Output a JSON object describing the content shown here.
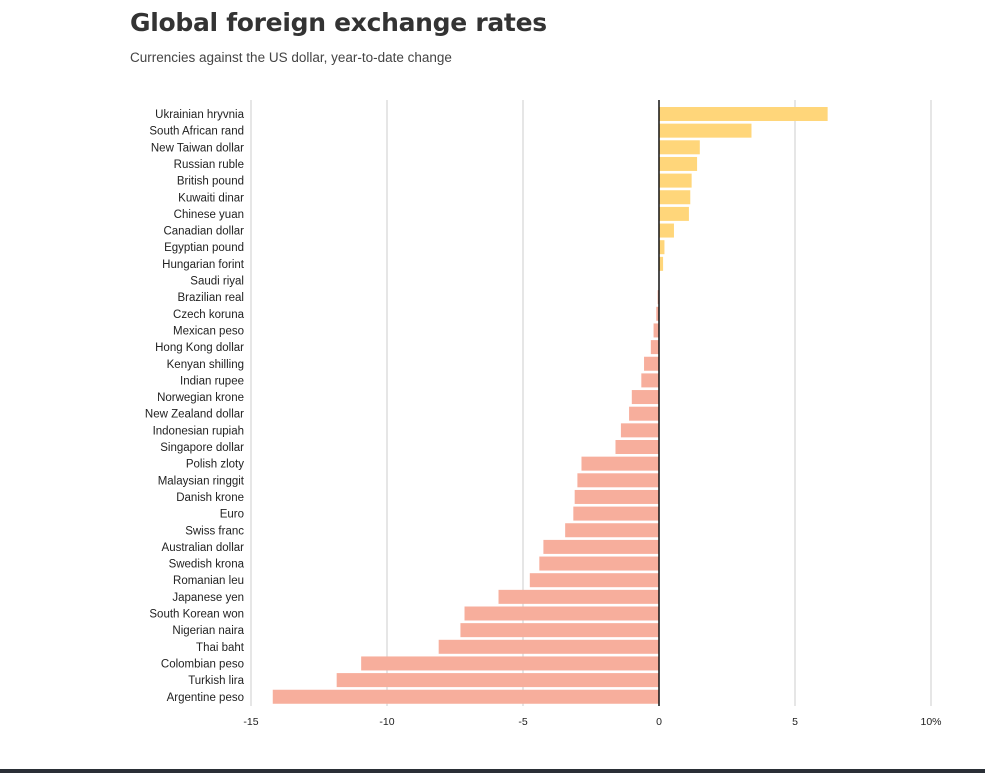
{
  "header": {
    "title": "Global foreign exchange rates",
    "subtitle": "Currencies against the US dollar, year-to-date change"
  },
  "colors": {
    "positive": "#ffd67a",
    "negative": "#f7ae9c",
    "zero_line": "#111111",
    "grid": "#cccccc",
    "text": "#222222"
  },
  "chart_data": {
    "type": "bar",
    "orientation": "horizontal",
    "title": "Global foreign exchange rates",
    "subtitle": "Currencies against the US dollar, year-to-date change",
    "xlim": [
      -15,
      10
    ],
    "ticks": [
      -15,
      -10,
      -5,
      0,
      5,
      10
    ],
    "tick_labels": [
      "-15",
      "-10",
      "-5",
      "0",
      "5",
      "10%"
    ],
    "grid": true,
    "categories": [
      "Ukrainian hryvnia",
      "South African rand",
      "New Taiwan dollar",
      "Russian ruble",
      "British pound",
      "Kuwaiti dinar",
      "Chinese yuan",
      "Canadian dollar",
      "Egyptian pound",
      "Hungarian forint",
      "Saudi riyal",
      "Brazilian real",
      "Czech koruna",
      "Mexican peso",
      "Hong Kong dollar",
      "Kenyan shilling",
      "Indian rupee",
      "Norwegian krone",
      "New Zealand dollar",
      "Indonesian rupiah",
      "Singapore dollar",
      "Polish zloty",
      "Malaysian ringgit",
      "Danish krone",
      "Euro",
      "Swiss franc",
      "Australian dollar",
      "Swedish krona",
      "Romanian leu",
      "Japanese yen",
      "South Korean won",
      "Nigerian naira",
      "Thai baht",
      "Colombian peso",
      "Turkish lira",
      "Argentine peso"
    ],
    "values": [
      6.2,
      3.4,
      1.5,
      1.4,
      1.2,
      1.15,
      1.1,
      0.55,
      0.2,
      0.15,
      0.0,
      -0.05,
      -0.1,
      -0.2,
      -0.3,
      -0.55,
      -0.65,
      -1.0,
      -1.1,
      -1.4,
      -1.6,
      -2.85,
      -3.0,
      -3.1,
      -3.15,
      -3.45,
      -4.25,
      -4.4,
      -4.75,
      -5.9,
      -7.15,
      -7.3,
      -8.1,
      -10.95,
      -11.85,
      -14.2
    ]
  }
}
